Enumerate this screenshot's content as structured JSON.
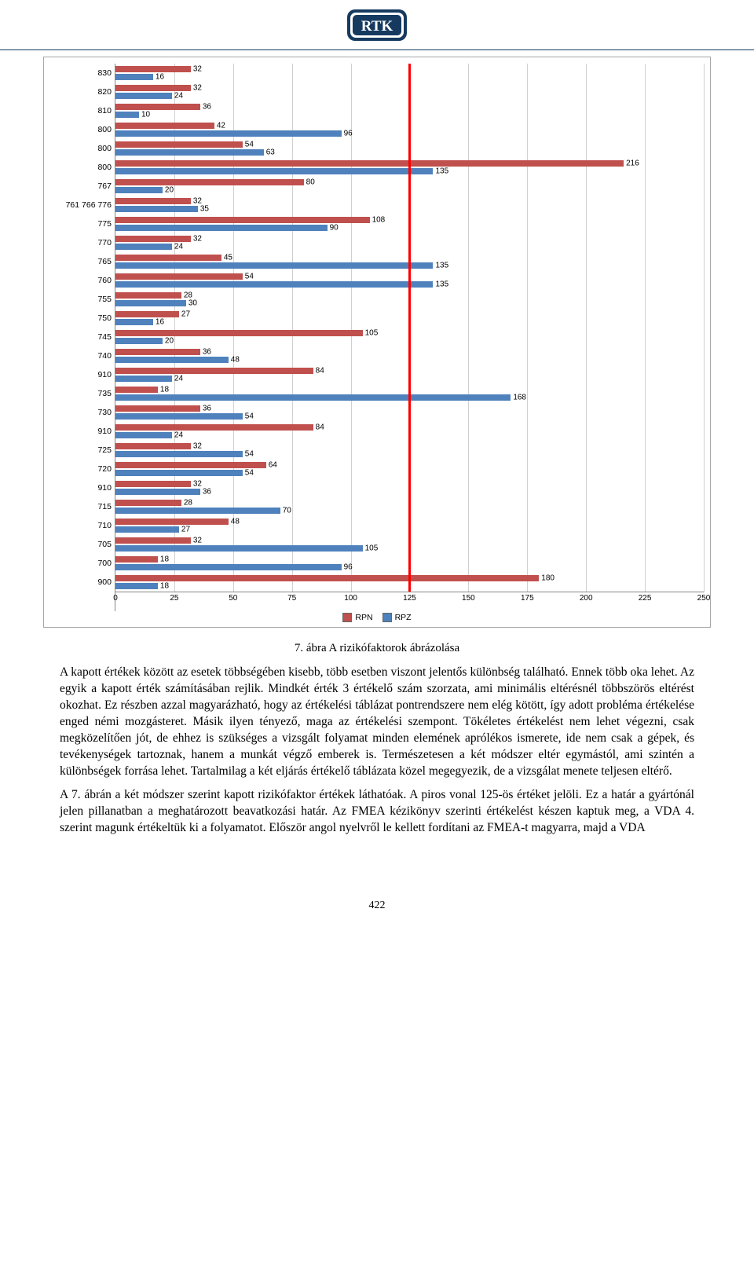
{
  "logo": {
    "text": "RTK",
    "frame_color": "#163a5f",
    "text_color": "#ffffff"
  },
  "chart": {
    "type": "bar",
    "xmax": 250,
    "xtick_step": 25,
    "xticks": [
      0,
      25,
      50,
      75,
      100,
      125,
      150,
      175,
      200,
      225,
      250
    ],
    "grid_color": "#d0d0d0",
    "threshold_value": 125,
    "threshold_color": "#ff0000",
    "series": [
      {
        "name": "RPN",
        "color": "#c0504d"
      },
      {
        "name": "RPZ",
        "color": "#4f81bd"
      }
    ],
    "categories": [
      {
        "label": "830",
        "rpn": 32,
        "rpz": 16
      },
      {
        "label": "820",
        "rpn": 32,
        "rpz": 24
      },
      {
        "label": "810",
        "rpn": 36,
        "rpz": 10
      },
      {
        "label": "800",
        "rpn": 42,
        "rpz": 96
      },
      {
        "label": "800",
        "rpn": 54,
        "rpz": 63
      },
      {
        "label": "800",
        "rpn": 216,
        "rpz": 135
      },
      {
        "label": "767",
        "rpn": 80,
        "rpz": 20
      },
      {
        "label": "761 766 776",
        "rpn": 32,
        "rpz": 35
      },
      {
        "label": "775",
        "rpn": 108,
        "rpz": 90
      },
      {
        "label": "770",
        "rpn": 32,
        "rpz": 24
      },
      {
        "label": "765",
        "rpn": 45,
        "rpz": 135
      },
      {
        "label": "760",
        "rpn": 54,
        "rpz": 135
      },
      {
        "label": "755",
        "rpn": 28,
        "rpz": 30
      },
      {
        "label": "750",
        "rpn": 27,
        "rpz": 16
      },
      {
        "label": "745",
        "rpn": 105,
        "rpz": 20
      },
      {
        "label": "740",
        "rpn": 36,
        "rpz": 48
      },
      {
        "label": "910",
        "rpn": 84,
        "rpz": 24
      },
      {
        "label": "735",
        "rpn": 18,
        "rpz": 168
      },
      {
        "label": "730",
        "rpn": 36,
        "rpz": 54
      },
      {
        "label": "910",
        "rpn": 84,
        "rpz": 24
      },
      {
        "label": "725",
        "rpn": 32,
        "rpz": 54
      },
      {
        "label": "720",
        "rpn": 64,
        "rpz": 54
      },
      {
        "label": "910",
        "rpn": 32,
        "rpz": 36
      },
      {
        "label": "715",
        "rpn": 28,
        "rpz": 70
      },
      {
        "label": "710",
        "rpn": 48,
        "rpz": 27
      },
      {
        "label": "705",
        "rpn": 32,
        "rpz": 105
      },
      {
        "label": "700",
        "rpn": 18,
        "rpz": 96
      },
      {
        "label": "900",
        "rpn": 180,
        "rpz": 18
      }
    ]
  },
  "caption": "7. ábra A rizikófaktorok ábrázolása",
  "paragraphs": [
    "A kapott értékek között az esetek többségében kisebb, több esetben viszont jelentős különbség található. Ennek több oka lehet. Az egyik a kapott érték számításában rejlik. Mindkét érték 3 értékelő szám szorzata, ami minimális eltérésnél többszörös eltérést okozhat. Ez részben azzal magyarázható, hogy az értékelési táblázat pontrendszere nem elég kötött, így adott probléma értékelése enged némi mozgásteret. Másik ilyen tényező, maga az értékelési szempont. Tökéletes értékelést nem lehet végezni, csak megközelítően jót, de ehhez is szükséges a vizsgált folyamat minden elemének aprólékos ismerete, ide nem csak a gépek, és tevékenységek tartoznak, hanem a munkát végző emberek is.  Természetesen a két módszer eltér egymástól, ami szintén a különbségek forrása lehet. Tartalmilag a két eljárás értékelő táblázata közel megegyezik, de a vizsgálat menete teljesen eltérő.",
    "A 7. ábrán a két módszer szerint kapott rizikófaktor értékek láthatóak. A piros vonal 125-ös értéket jelöli. Ez a határ a gyártónál jelen pillanatban a meghatározott beavatkozási határ. Az FMEA kézikönyv szerinti értékelést készen kaptuk meg, a VDA 4. szerint magunk értékeltük ki a folyamatot. Először angol nyelvről le kellett fordítani az FMEA-t magyarra, majd a VDA"
  ],
  "page_number": "422"
}
